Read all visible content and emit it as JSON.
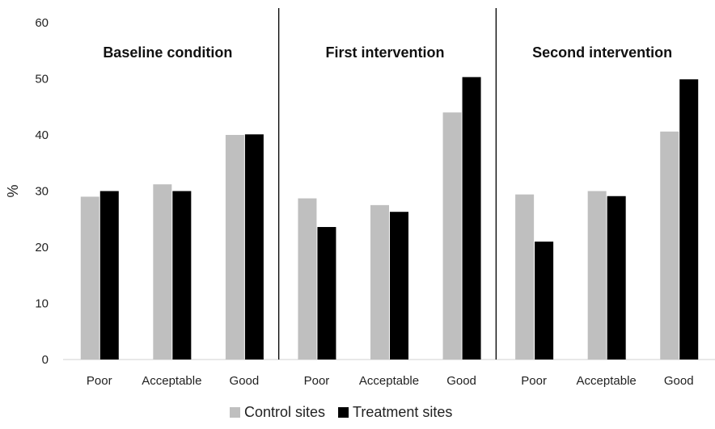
{
  "chart_data": {
    "type": "bar",
    "ylabel": "%",
    "ylim": [
      0,
      60
    ],
    "yticks": [
      0,
      10,
      20,
      30,
      40,
      50,
      60
    ],
    "grid": false,
    "legend_position": "bottom",
    "series_colors": {
      "Control sites": "#bfbfbf",
      "Treatment sites": "#000000"
    },
    "panels": [
      {
        "title": "Baseline condition",
        "categories": [
          "Poor",
          "Acceptable",
          "Good"
        ],
        "series": [
          {
            "name": "Control sites",
            "values": [
              29,
              31.2,
              40
            ]
          },
          {
            "name": "Treatment sites",
            "values": [
              30,
              30,
              40.1
            ]
          }
        ]
      },
      {
        "title": "First intervention",
        "categories": [
          "Poor",
          "Acceptable",
          "Good"
        ],
        "series": [
          {
            "name": "Control sites",
            "values": [
              28.7,
              27.5,
              44
            ]
          },
          {
            "name": "Treatment sites",
            "values": [
              23.6,
              26.3,
              50.3
            ]
          }
        ]
      },
      {
        "title": "Second intervention",
        "categories": [
          "Poor",
          "Acceptable",
          "Good"
        ],
        "series": [
          {
            "name": "Control sites",
            "values": [
              29.4,
              30,
              40.6
            ]
          },
          {
            "name": "Treatment sites",
            "values": [
              21,
              29.1,
              49.9
            ]
          }
        ]
      }
    ],
    "legend": [
      "Control sites",
      "Treatment sites"
    ]
  }
}
